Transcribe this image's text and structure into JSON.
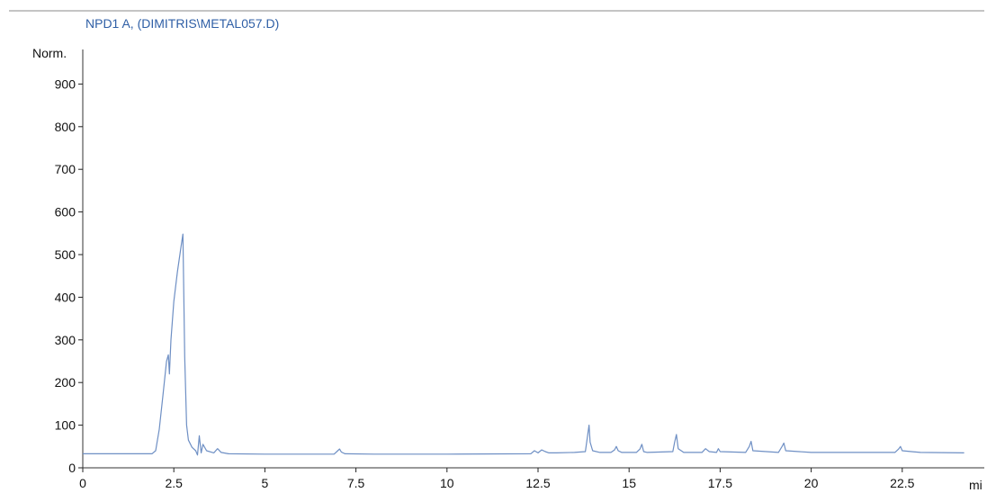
{
  "colors": {
    "trace": "#6e8fc4",
    "title": "#2f5fa6",
    "axis": "#222222",
    "frame": "#777777"
  },
  "chart_data": {
    "type": "line",
    "title": "NPD1 A, (DIMITRIS\\METAL057.D)",
    "ylabel": "Norm.",
    "xlabel": "mi",
    "xlim": [
      0,
      24.6
    ],
    "ylim": [
      -10,
      1000
    ],
    "xticks": [
      0,
      2.5,
      5,
      7.5,
      10,
      12.5,
      15,
      17.5,
      20,
      22.5
    ],
    "xtick_labels": [
      "0",
      "2.5",
      "5",
      "7.5",
      "10",
      "12.5",
      "15",
      "17.5",
      "20",
      "22.5"
    ],
    "yticks": [
      0,
      100,
      200,
      300,
      400,
      500,
      600,
      700,
      800,
      900
    ],
    "ytick_labels": [
      "0",
      "100",
      "200",
      "300",
      "400",
      "500",
      "600",
      "700",
      "800",
      "900"
    ],
    "series": [
      {
        "x": [
          0,
          1.9,
          2.0,
          2.1,
          2.2,
          2.3,
          2.35,
          2.38,
          2.42,
          2.5,
          2.6,
          2.7,
          2.75,
          2.8,
          2.85,
          2.9,
          3.0,
          3.1,
          3.15,
          3.2,
          3.25,
          3.3,
          3.4,
          3.6,
          3.7,
          3.8,
          4.0,
          5.0,
          6.9,
          7.0,
          7.05,
          7.1,
          7.2,
          8.0,
          10.0,
          12.3,
          12.4,
          12.5,
          12.6,
          12.7,
          12.8,
          13.0,
          13.5,
          13.8,
          13.9,
          13.93,
          14.0,
          14.2,
          14.5,
          14.6,
          14.65,
          14.7,
          14.8,
          15.2,
          15.3,
          15.35,
          15.4,
          15.5,
          16.2,
          16.25,
          16.3,
          16.35,
          16.5,
          17.0,
          17.1,
          17.2,
          17.4,
          17.45,
          17.5,
          18.2,
          18.3,
          18.35,
          18.4,
          19.1,
          19.2,
          19.25,
          19.3,
          20.0,
          22.3,
          22.4,
          22.45,
          22.5,
          23.0,
          24.2
        ],
        "y": [
          33,
          33,
          40,
          90,
          170,
          250,
          265,
          220,
          300,
          390,
          460,
          520,
          548,
          260,
          100,
          65,
          48,
          40,
          30,
          75,
          35,
          55,
          40,
          35,
          45,
          36,
          33,
          32,
          32,
          40,
          44,
          37,
          33,
          32,
          32,
          33,
          40,
          35,
          42,
          38,
          35,
          35,
          36,
          38,
          100,
          60,
          40,
          36,
          36,
          42,
          50,
          40,
          36,
          36,
          44,
          55,
          38,
          36,
          38,
          60,
          78,
          45,
          36,
          36,
          45,
          38,
          36,
          45,
          38,
          36,
          50,
          62,
          40,
          36,
          50,
          58,
          40,
          36,
          36,
          44,
          50,
          40,
          36,
          35
        ]
      }
    ]
  }
}
